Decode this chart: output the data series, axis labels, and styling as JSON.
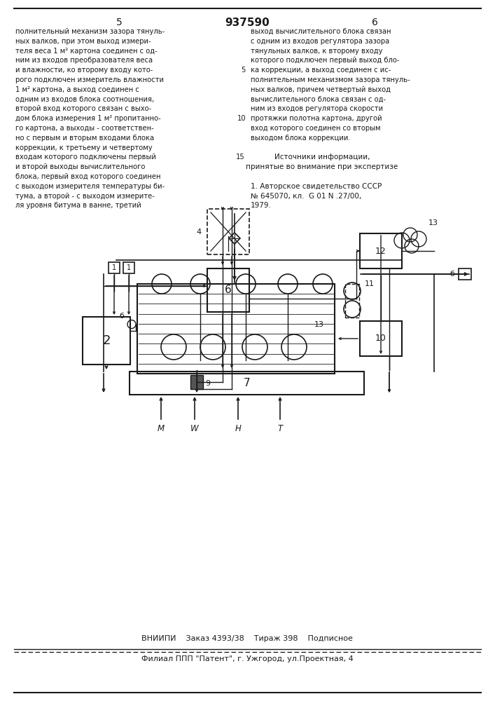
{
  "title_patent": "937590",
  "col_left_num": "5",
  "col_right_num": "6",
  "text_left": [
    "полнительный механизм зазора тянуль-",
    "ных валков, при этом выход измери-",
    "теля веса 1 м² картона соединен с од-",
    "ним из входов преобразователя веса",
    "и влажности, ко второму входу кото-",
    "рого подключен измеритель влажности",
    "1 м² картона, а выход соединен с",
    "одним из входов блока соотношения,",
    "второй вход которого связан с выхо-",
    "дом блока измерения 1 м² пропитанно-",
    "го картона, а выходы - соответствен-",
    "но с первым и вторым входами блока",
    "коррекции, к третьему и четвертому",
    "входам которого подключены первый",
    "и второй выходы вычислительного",
    "блока, первый вход которого соединен",
    "с выходом измерителя температуры би-",
    "тума, а второй - с выходом измерите-",
    "ля уровня битума в ванне, третий"
  ],
  "text_right": [
    "выход вычислительного блока связан",
    "с одним из входов регулятора зазора",
    "тянульных валков, к второму входу",
    "которого подключен первый выход бло-",
    "ка коррекции, а выход соединен с ис-",
    "полнительным механизмом зазора тянуль-",
    "ных валков, причем четвертый выход",
    "вычислительного блока связан с од-",
    "ним из входов регулятора скорости",
    "протяжки полотна картона, другой",
    "вход которого соединен со вторым",
    "выходом блока коррекции."
  ],
  "sources_title": "Источники информации,",
  "sources_subtitle": "принятые во внимание при экспертизе",
  "source_1": "1. Авторское свидетельство СССР",
  "source_2": "№ 645070, кл.  G 01 N .27/00,",
  "source_3": "1979.",
  "footer_line1": "ВНИИПИ    Заказ 4393/38    Тираж 398    Подписное",
  "footer_line2": "Филиал ППП \"Патент\", г. Ужгород, ул.Проектная, 4",
  "text_color": "#1a1a1a",
  "line_color": "#1a1a1a"
}
